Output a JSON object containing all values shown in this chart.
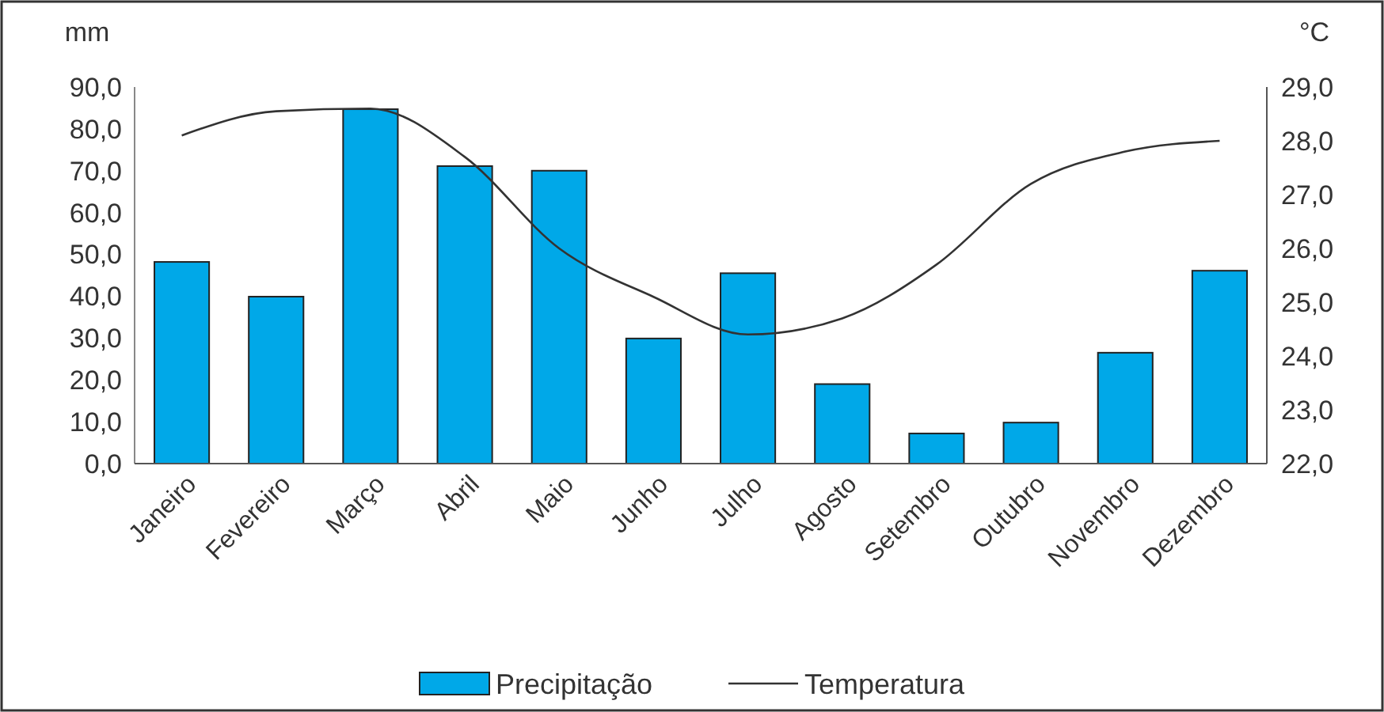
{
  "chart_data": {
    "type": "bar",
    "ylabel": "mm",
    "y2label": "°C",
    "categories": [
      "Janeiro",
      "Fevereiro",
      "Março",
      "Abril",
      "Maio",
      "Junho",
      "Julho",
      "Agosto",
      "Setembro",
      "Outubro",
      "Novembro",
      "Dezembro"
    ],
    "series": [
      {
        "name": "Precipitação",
        "color": "#00a8e8",
        "values": [
          48.2,
          39.9,
          84.7,
          71.1,
          70.0,
          29.9,
          45.5,
          19.0,
          7.2,
          9.8,
          26.5,
          46.1
        ]
      },
      {
        "name": "Temperatura",
        "type": "line",
        "axis": "y2",
        "color": "#333333",
        "values": [
          28.1,
          28.55,
          28.6,
          27.7,
          26.0,
          25.1,
          24.4,
          24.7,
          25.7,
          27.2,
          27.8,
          28.0
        ]
      }
    ],
    "ylim": [
      0,
      90
    ],
    "yticks": [
      {
        "value": 0,
        "label": "0,0"
      },
      {
        "value": 10,
        "label": "10,0"
      },
      {
        "value": 20,
        "label": "20,0"
      },
      {
        "value": 30,
        "label": "30,0"
      },
      {
        "value": 40,
        "label": "40,0"
      },
      {
        "value": 50,
        "label": "50,0"
      },
      {
        "value": 60,
        "label": "60,0"
      },
      {
        "value": 70,
        "label": "70,0"
      },
      {
        "value": 80,
        "label": "80,0"
      },
      {
        "value": 90,
        "label": "90,0"
      }
    ],
    "y2lim": [
      22,
      29
    ],
    "y2ticks": [
      {
        "value": 22,
        "label": "22,0"
      },
      {
        "value": 23,
        "label": "23,0"
      },
      {
        "value": 24,
        "label": "24,0"
      },
      {
        "value": 25,
        "label": "25,0"
      },
      {
        "value": 26,
        "label": "26,0"
      },
      {
        "value": 27,
        "label": "27,0"
      },
      {
        "value": 28,
        "label": "28,0"
      },
      {
        "value": 29,
        "label": "29,0"
      }
    ],
    "grid": false,
    "legend": "bottom",
    "marker": "none",
    "line_style": "solid"
  }
}
